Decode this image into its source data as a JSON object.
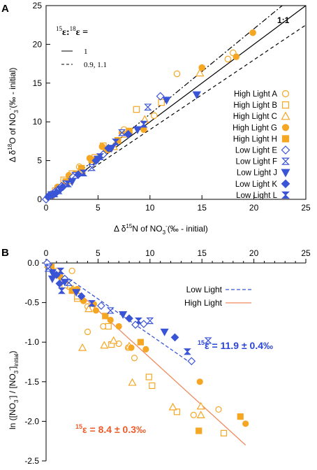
{
  "colors": {
    "high": "#f5a623",
    "high_line": "#f08a5d",
    "low": "#3a54d6",
    "axis": "#000000",
    "fit_high_text": "#f05a28",
    "fit_low_text": "#2a46d9"
  },
  "chart_data": [
    {
      "panel_label": "A",
      "type": "scatter",
      "xlabel": {
        "prefix": "Δ δ",
        "sup": "15",
        "mid": "N of NO",
        "sub": "3",
        "sup2": "-",
        "suffix": "(‰ - initial)"
      },
      "ylabel": {
        "prefix": "Δ δ",
        "sup": "18",
        "mid": "O of NO",
        "sub": "3",
        "sup2": "-",
        "suffix": "(‰ - initial)"
      },
      "xlim": [
        0,
        25
      ],
      "ylim": [
        0,
        25
      ],
      "xticks": [
        "0",
        "5",
        "10",
        "15",
        "20",
        "25"
      ],
      "yticks": [
        "0",
        "5",
        "10",
        "15",
        "20",
        "25"
      ],
      "ratio_label": {
        "sup1": "15",
        "e1": "ε:",
        "sup2": "18",
        "e2": "ε ="
      },
      "line_legend": [
        {
          "style": "solid",
          "label": "1"
        },
        {
          "style": "dashed",
          "label": "0.9, 1.1"
        }
      ],
      "ref_label": "1:1",
      "ref_lines": [
        {
          "slope": 1.0,
          "style": "solid"
        },
        {
          "slope": 0.9,
          "style": "dashed"
        },
        {
          "slope": 1.1,
          "style": "dashdot"
        }
      ],
      "series": [
        {
          "name": "High Light A",
          "group": "high",
          "marker": "circle-open",
          "points": [
            [
              12.6,
              16.2
            ],
            [
              10.4,
              10.8
            ],
            [
              7.5,
              9.0
            ],
            [
              3.2,
              4.2
            ],
            [
              1.2,
              1.5
            ],
            [
              17.5,
              18.1
            ],
            [
              0.5,
              0.7
            ],
            [
              18.0,
              18.9
            ]
          ]
        },
        {
          "name": "High Light B",
          "group": "high",
          "marker": "square-open",
          "points": [
            [
              8.7,
              11.6
            ],
            [
              5.5,
              6.9
            ],
            [
              4.7,
              5.4
            ],
            [
              2.5,
              3.3
            ],
            [
              1.7,
              2.5
            ],
            [
              0.9,
              1.1
            ],
            [
              7.6,
              8.4
            ],
            [
              11.1,
              12.5
            ]
          ]
        },
        {
          "name": "High Light C",
          "group": "high",
          "marker": "triangle-open",
          "points": [
            [
              14.8,
              16.3
            ],
            [
              6.5,
              6.8
            ],
            [
              3.4,
              3.8
            ],
            [
              2.1,
              2.4
            ],
            [
              1.0,
              1.2
            ],
            [
              0.4,
              0.5
            ],
            [
              9.5,
              10.3
            ]
          ]
        },
        {
          "name": "High Light G",
          "group": "high",
          "marker": "circle-filled",
          "points": [
            [
              19.9,
              21.5
            ],
            [
              18.3,
              18.4
            ],
            [
              15.0,
              17.0
            ],
            [
              9.4,
              9.0
            ],
            [
              7.3,
              8.6
            ],
            [
              5.4,
              6.8
            ],
            [
              4.2,
              5.3
            ],
            [
              2.2,
              3.1
            ],
            [
              1.1,
              1.6
            ]
          ]
        },
        {
          "name": "High Light H",
          "group": "high",
          "marker": "square-filled",
          "points": [
            [
              8.0,
              8.8
            ],
            [
              6.9,
              7.6
            ],
            [
              5.8,
              6.4
            ],
            [
              4.4,
              5.1
            ],
            [
              3.4,
              4.0
            ],
            [
              2.9,
              3.3
            ],
            [
              1.9,
              2.3
            ]
          ]
        },
        {
          "name": "Low Light E",
          "group": "low",
          "marker": "diamond-open",
          "points": [
            [
              11.0,
              13.3
            ],
            [
              5.5,
              5.8
            ],
            [
              2.6,
              2.9
            ],
            [
              1.5,
              1.7
            ],
            [
              0.8,
              0.9
            ],
            [
              0.3,
              0.5
            ],
            [
              0.0,
              0.0
            ]
          ]
        },
        {
          "name": "Low Light F",
          "group": "low",
          "marker": "hourglass",
          "points": [
            [
              9.8,
              11.9
            ],
            [
              7.3,
              8.6
            ],
            [
              4.4,
              4.1
            ],
            [
              2.8,
              3.1
            ],
            [
              1.9,
              2.0
            ],
            [
              1.2,
              1.1
            ],
            [
              0.5,
              0.6
            ]
          ]
        },
        {
          "name": "Low Light J",
          "group": "low",
          "marker": "triangle-down",
          "points": [
            [
              14.5,
              13.5
            ],
            [
              11.6,
              12.8
            ],
            [
              8.8,
              9.0
            ],
            [
              6.3,
              6.6
            ],
            [
              5.0,
              5.2
            ],
            [
              2.5,
              2.3
            ],
            [
              1.4,
              1.3
            ],
            [
              0.6,
              0.5
            ]
          ]
        },
        {
          "name": "Low Light K",
          "group": "low",
          "marker": "diamond-filled",
          "points": [
            [
              7.9,
              8.4
            ],
            [
              6.0,
              6.6
            ],
            [
              4.8,
              5.0
            ],
            [
              3.1,
              3.2
            ],
            [
              1.6,
              1.6
            ],
            [
              1.0,
              0.9
            ],
            [
              0.2,
              0.3
            ]
          ]
        },
        {
          "name": "Low Light L",
          "group": "low",
          "marker": "hourglass-filled",
          "points": [
            [
              9.4,
              9.7
            ],
            [
              6.7,
              7.4
            ],
            [
              5.2,
              5.5
            ],
            [
              3.6,
              3.4
            ],
            [
              2.1,
              2.0
            ],
            [
              0.8,
              0.7
            ]
          ]
        }
      ]
    },
    {
      "panel_label": "B",
      "type": "scatter",
      "xlim": [
        0,
        25
      ],
      "ylim": [
        -2.5,
        0.0
      ],
      "xticks": [
        "0",
        "5",
        "10",
        "15",
        "20",
        "25"
      ],
      "yticks": [
        "0.0",
        "-0.5",
        "-1.0",
        "-1.5",
        "-2.0",
        "-2.5"
      ],
      "ylabel": {
        "a": "ln ([NO",
        "a_sub": "3",
        "a_sup": "-",
        "b": "] / [NO",
        "b_sub": "3",
        "b_sup": "-",
        "c": "]",
        "c_sub": "initial",
        "d": ")"
      },
      "legend": [
        {
          "label": "Low Light",
          "group": "low",
          "style": "dashed"
        },
        {
          "label": "High Light",
          "group": "high",
          "style": "solid"
        }
      ],
      "fits": [
        {
          "group": "high",
          "label_eps": "ε = 8.4 ± 0.3‰",
          "sup": "15",
          "x": [
            0,
            19.2
          ],
          "y": [
            0.0,
            -2.3
          ]
        },
        {
          "group": "low",
          "label_eps": "ε = 11.9 ± 0.4‰",
          "sup": "15",
          "x": [
            0,
            14.0
          ],
          "y": [
            0.0,
            -1.27
          ]
        }
      ],
      "points_high_open": [
        [
          0.2,
          -0.02
        ],
        [
          1.0,
          -0.1
        ],
        [
          2.2,
          -0.3
        ],
        [
          3.0,
          -0.45
        ],
        [
          4.0,
          -0.55
        ],
        [
          5.5,
          -0.8
        ],
        [
          7.0,
          -1.02
        ],
        [
          8.5,
          -1.2
        ],
        [
          10.2,
          -1.55
        ],
        [
          12.6,
          -1.88
        ],
        [
          17.1,
          -2.15
        ],
        [
          2.5,
          -0.1
        ],
        [
          3.5,
          -1.07
        ],
        [
          4.0,
          -0.87
        ],
        [
          5.6,
          -1.04
        ],
        [
          6.3,
          -1.03
        ],
        [
          7.9,
          -1.07
        ],
        [
          8.0,
          -1.05
        ],
        [
          8.3,
          -1.51
        ],
        [
          9.9,
          -1.44
        ],
        [
          12.2,
          -1.82
        ],
        [
          14.2,
          -1.92
        ],
        [
          14.9,
          -1.81
        ],
        [
          16.6,
          -1.85
        ],
        [
          3.0,
          -0.42
        ],
        [
          1.8,
          -0.28
        ],
        [
          2.6,
          -0.33
        ],
        [
          4.1,
          -0.58
        ],
        [
          6.0,
          -0.8
        ],
        [
          6.5,
          -0.98
        ],
        [
          14.9,
          -1.92
        ]
      ],
      "points_high_filled": [
        [
          0.5,
          -0.05
        ],
        [
          1.4,
          -0.18
        ],
        [
          2.5,
          -0.35
        ],
        [
          3.6,
          -0.48
        ],
        [
          4.8,
          -0.6
        ],
        [
          5.7,
          -0.67
        ],
        [
          6.2,
          -0.72
        ],
        [
          7.0,
          -0.8
        ],
        [
          8.2,
          -1.07
        ],
        [
          9.1,
          -1.0
        ],
        [
          9.6,
          -1.09
        ],
        [
          14.8,
          -1.5
        ],
        [
          14.7,
          -2.12
        ],
        [
          18.7,
          -1.94
        ],
        [
          19.2,
          -2.03
        ],
        [
          4.6,
          -0.52
        ],
        [
          3.0,
          -0.33
        ]
      ],
      "points_low": [
        [
          0.1,
          0.0
        ],
        [
          0.3,
          -0.05
        ],
        [
          0.6,
          -0.12
        ],
        [
          1.0,
          -0.15
        ],
        [
          1.4,
          -0.1
        ],
        [
          1.8,
          -0.2
        ],
        [
          2.2,
          -0.25
        ],
        [
          2.9,
          -0.37
        ],
        [
          3.4,
          -0.42
        ],
        [
          4.4,
          -0.51
        ],
        [
          5.3,
          -0.54
        ],
        [
          6.2,
          -0.6
        ],
        [
          7.4,
          -0.65
        ],
        [
          8.0,
          -0.7
        ],
        [
          8.9,
          -0.73
        ],
        [
          9.4,
          -0.77
        ],
        [
          10.0,
          -0.73
        ],
        [
          11.4,
          -0.87
        ],
        [
          12.4,
          -0.94
        ],
        [
          13.6,
          -1.12
        ],
        [
          14.0,
          -1.24
        ],
        [
          15.6,
          -0.98
        ],
        [
          0.6,
          -0.2
        ],
        [
          1.3,
          -0.26
        ],
        [
          1.5,
          -0.35
        ],
        [
          8.6,
          -0.78
        ],
        [
          0.2,
          -0.07
        ],
        [
          1.8,
          -0.24
        ]
      ]
    }
  ]
}
